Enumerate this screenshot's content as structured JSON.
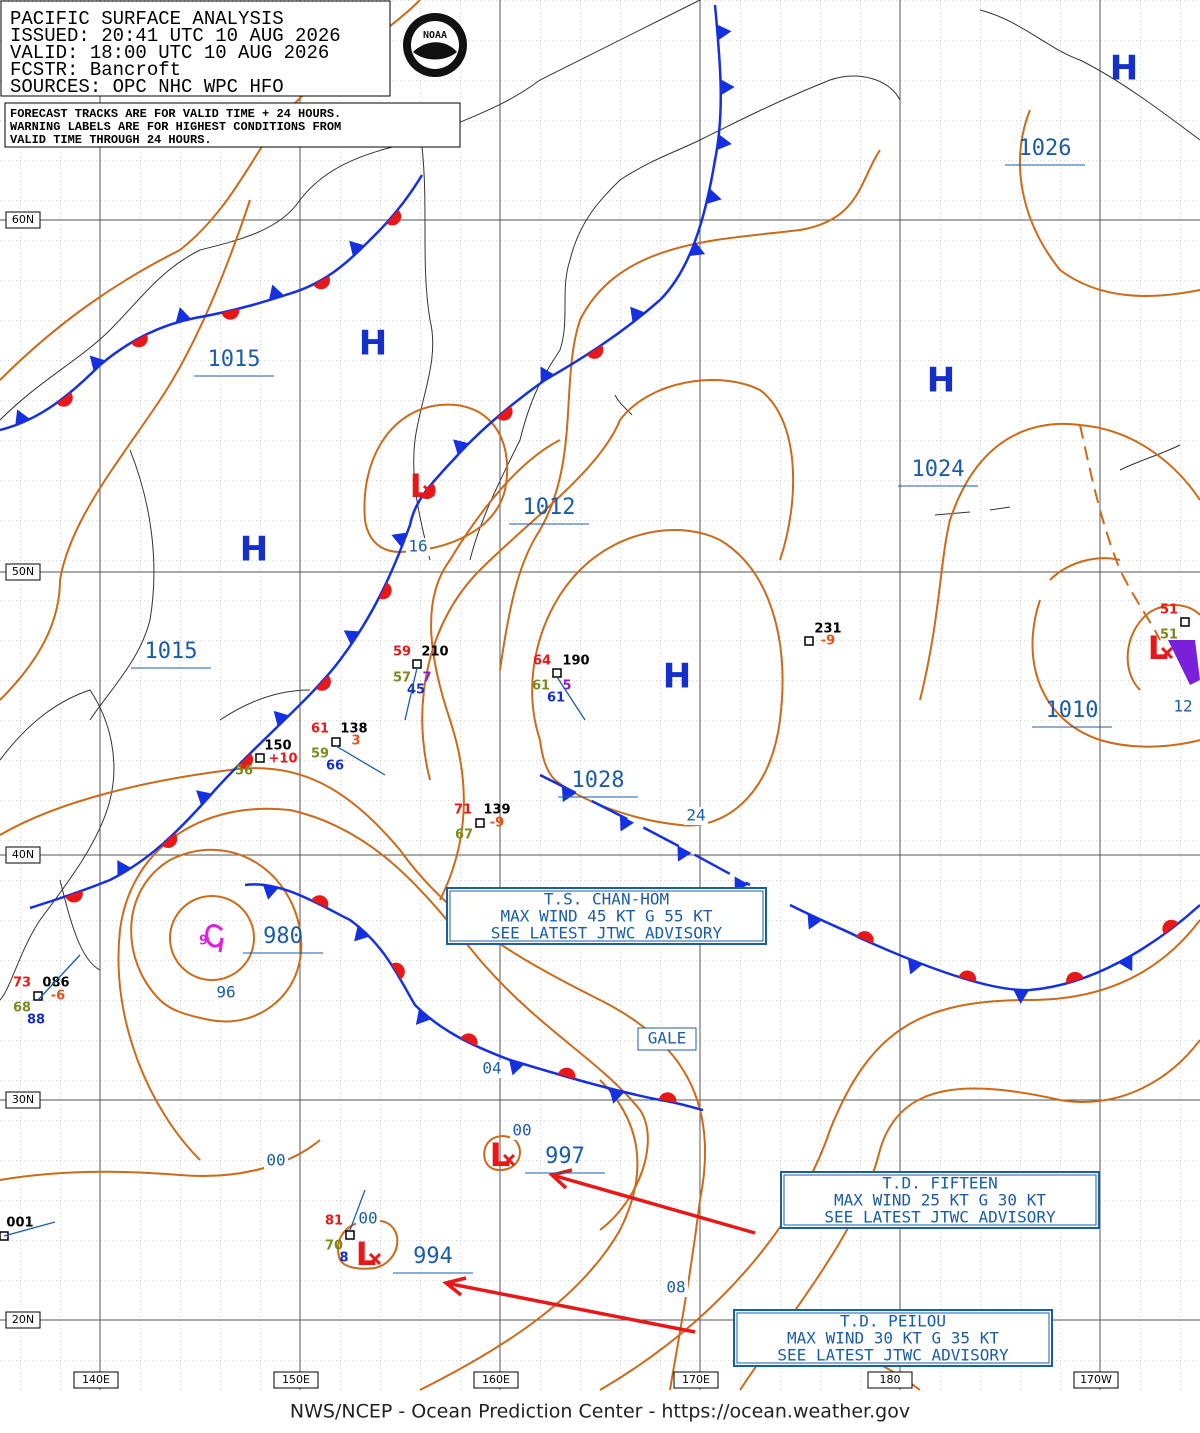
{
  "header": {
    "lines": [
      "PACIFIC SURFACE ANALYSIS",
      "ISSUED:  20:41 UTC 10 AUG 2026",
      "VALID:   18:00 UTC 10 AUG 2026",
      "FCSTR:   Bancroft",
      "SOURCES: OPC NHC WPC HFO"
    ]
  },
  "note": {
    "lines": [
      "FORECAST TRACKS ARE FOR VALID TIME + 24 HOURS.",
      "WARNING LABELS ARE FOR HIGHEST CONDITIONS FROM",
      "VALID TIME THROUGH 24 HOURS."
    ]
  },
  "logo": "NOAA",
  "latitude_labels": [
    "60N",
    "50N",
    "40N",
    "30N",
    "20N"
  ],
  "longitude_labels": [
    "140E",
    "150E",
    "160E",
    "170E",
    "180",
    "170W"
  ],
  "high_symbol": "H",
  "low_symbol": "L",
  "pressure_labels": [
    "1015",
    "1015",
    "1012",
    "1028",
    "1024",
    "1026",
    "1010",
    "980",
    "997",
    "994"
  ],
  "isobar_labels": [
    "16",
    "24",
    "04",
    "00",
    "00",
    "00",
    "96",
    "08",
    "12"
  ],
  "station_labels": [
    "210",
    "59",
    "57",
    "7",
    "45",
    "190",
    "64",
    "61",
    "5",
    "61",
    "231",
    "-9",
    "150",
    "56",
    "+10",
    "138",
    "61",
    "59",
    "3",
    "66",
    "139",
    "71",
    "67",
    "-9",
    "086",
    "73",
    "68",
    "-6",
    "88",
    "001",
    "81",
    "70",
    "8",
    "51",
    "51",
    "9."
  ],
  "gale": "GALE",
  "advisories": [
    {
      "lines": [
        "T.S. CHAN-HOM",
        "MAX WIND 45 KT G 55 KT",
        "SEE LATEST JTWC ADVISORY"
      ]
    },
    {
      "lines": [
        "T.D. FIFTEEN",
        "MAX WIND 25 KT G 30 KT",
        "SEE LATEST JTWC ADVISORY"
      ]
    },
    {
      "lines": [
        "T.D. PEILOU",
        "MAX WIND 30 KT G 35 KT",
        "SEE LATEST JTWC ADVISORY"
      ]
    }
  ],
  "footer": "NWS/NCEP - Ocean Prediction Center - https://ocean.weather.gov"
}
